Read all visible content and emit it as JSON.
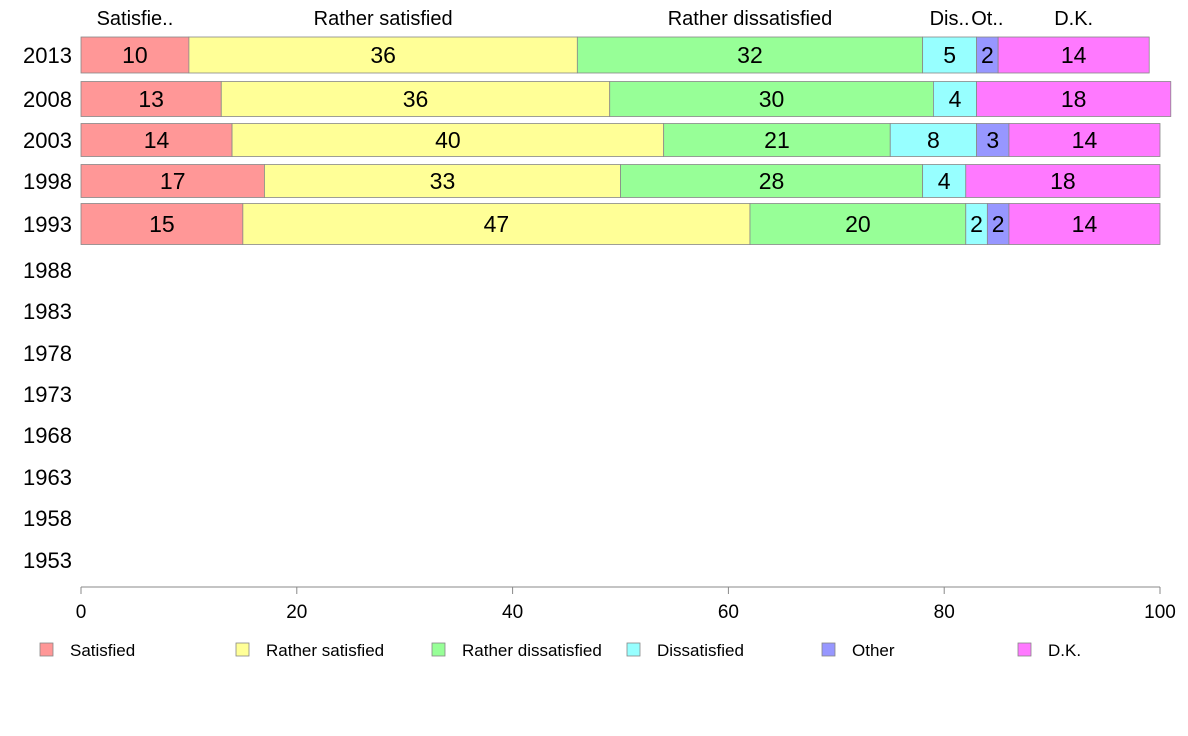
{
  "chart_data": {
    "type": "bar",
    "orientation": "horizontal",
    "stacked": true,
    "categories": [
      "2013",
      "2008",
      "2003",
      "1998",
      "1993",
      "1988",
      "1983",
      "1978",
      "1973",
      "1968",
      "1963",
      "1958",
      "1953"
    ],
    "top_labels": [
      "Satisfie..",
      "Rather satisfied",
      "Rather dissatisfied",
      "Dis..",
      "Ot..",
      "D.K."
    ],
    "series": [
      {
        "name": "Satisfied",
        "color": "#ff9797",
        "values": [
          10,
          13,
          14,
          17,
          15,
          null,
          null,
          null,
          null,
          null,
          null,
          null,
          null
        ]
      },
      {
        "name": "Rather satisfied",
        "color": "#ffff97",
        "values": [
          36,
          36,
          40,
          33,
          47,
          null,
          null,
          null,
          null,
          null,
          null,
          null,
          null
        ]
      },
      {
        "name": "Rather dissatisfied",
        "color": "#97ff97",
        "values": [
          32,
          30,
          21,
          28,
          20,
          null,
          null,
          null,
          null,
          null,
          null,
          null,
          null
        ]
      },
      {
        "name": "Dissatisfied",
        "color": "#97ffff",
        "values": [
          5,
          4,
          8,
          4,
          2,
          null,
          null,
          null,
          null,
          null,
          null,
          null,
          null
        ]
      },
      {
        "name": "Other",
        "color": "#9797ff",
        "values": [
          2,
          0,
          3,
          0,
          2,
          null,
          null,
          null,
          null,
          null,
          null,
          null,
          null
        ]
      },
      {
        "name": "D.K.",
        "color": "#ff79ff",
        "values": [
          14,
          18,
          14,
          18,
          14,
          null,
          null,
          null,
          null,
          null,
          null,
          null,
          null
        ]
      }
    ],
    "xlim": [
      0,
      100
    ],
    "xticks": [
      0,
      20,
      40,
      60,
      80,
      100
    ],
    "grid": false,
    "legend_position": "bottom"
  }
}
